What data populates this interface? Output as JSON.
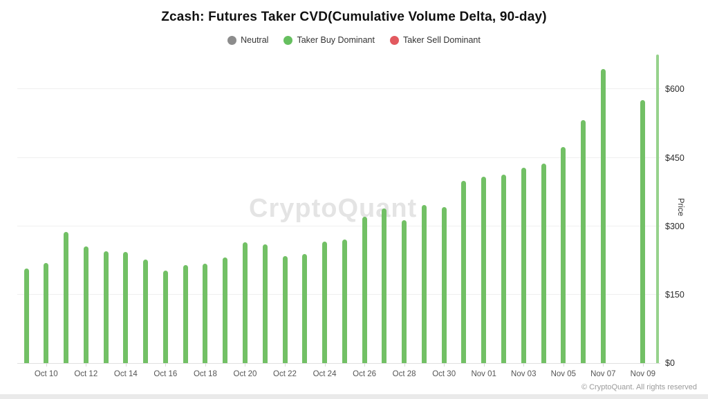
{
  "title": "Zcash: Futures Taker CVD(Cumulative Volume Delta, 90-day)",
  "legend": {
    "items": [
      {
        "label": "Neutral",
        "color": "#8c8c8c"
      },
      {
        "label": "Taker Buy Dominant",
        "color": "#66bf5f"
      },
      {
        "label": "Taker Sell Dominant",
        "color": "#e2595f"
      }
    ]
  },
  "watermark": "CryptoQuant",
  "footer": {
    "copyright": "© CryptoQuant. All rights reserved"
  },
  "chart_data": {
    "type": "bar",
    "title": "Zcash: Futures Taker CVD(Cumulative Volume Delta, 90-day)",
    "xlabel": "",
    "ylabel": "Price",
    "ylim": [
      0,
      690
    ],
    "grid": true,
    "legend_position": "top",
    "bar_color": "#72c065",
    "partial_bar_color": "#96d28c",
    "y_ticks": [
      {
        "label": "$0",
        "value": 0
      },
      {
        "label": "$150",
        "value": 150
      },
      {
        "label": "$300",
        "value": 300
      },
      {
        "label": "$450",
        "value": 450
      },
      {
        "label": "$600",
        "value": 600
      }
    ],
    "x_tick_labels": [
      "Oct 10",
      "Oct 12",
      "Oct 14",
      "Oct 16",
      "Oct 18",
      "Oct 20",
      "Oct 22",
      "Oct 24",
      "Oct 26",
      "Oct 28",
      "Oct 30",
      "Nov 01",
      "Nov 03",
      "Nov 05",
      "Nov 07",
      "Nov 09"
    ],
    "x": [
      "Oct 09",
      "Oct 10",
      "Oct 11",
      "Oct 12",
      "Oct 13",
      "Oct 14",
      "Oct 15",
      "Oct 16",
      "Oct 17",
      "Oct 18",
      "Oct 19",
      "Oct 20",
      "Oct 21",
      "Oct 22",
      "Oct 23",
      "Oct 24",
      "Oct 25",
      "Oct 26",
      "Oct 27",
      "Oct 28",
      "Oct 29",
      "Oct 30",
      "Oct 31",
      "Nov 01",
      "Nov 02",
      "Nov 03",
      "Nov 04",
      "Nov 05",
      "Nov 06",
      "Nov 07",
      "Nov 08",
      "Nov 09",
      "Nov 10"
    ],
    "series": [
      {
        "name": "Taker Buy Dominant",
        "values": [
          208,
          220,
          287,
          256,
          245,
          243,
          227,
          203,
          215,
          218,
          232,
          265,
          260,
          235,
          239,
          266,
          271,
          321,
          339,
          313,
          347,
          342,
          400,
          409,
          413,
          429,
          438,
          474,
          532,
          644,
          null,
          576,
          676
        ]
      }
    ],
    "last_bar_partial": true
  }
}
